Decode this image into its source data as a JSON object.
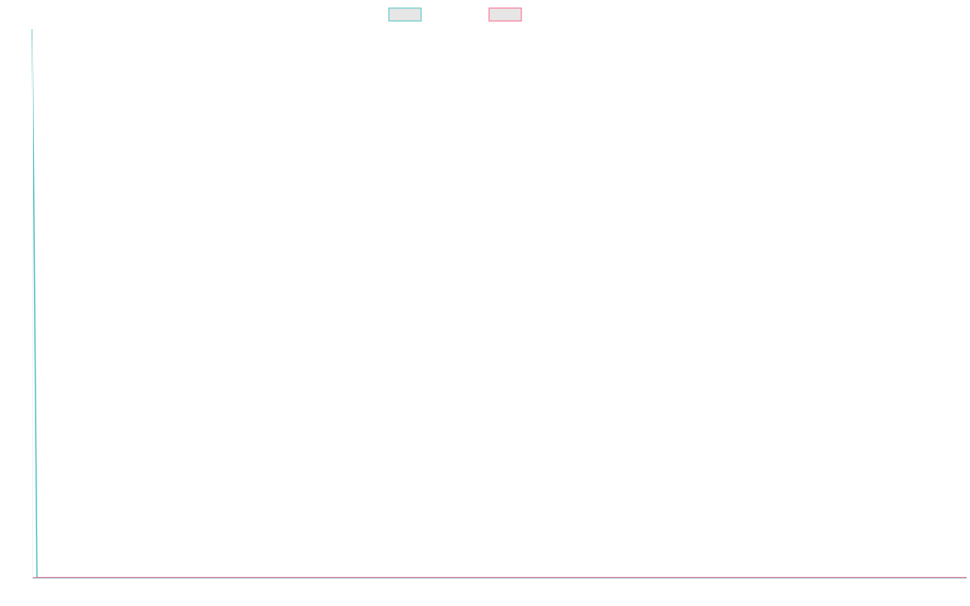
{
  "chart_data": {
    "type": "line",
    "title": "",
    "xlabel": "",
    "ylabel": "",
    "legend_position": "top-center",
    "grid": false,
    "series": [
      {
        "color": "#4bc0c0",
        "legend_swatch_fill": "#e6e6e6",
        "points": [
          [
            0,
            1.0
          ],
          [
            0.005,
            0.0
          ],
          [
            1,
            0.0
          ]
        ]
      },
      {
        "color": "#ff6384",
        "legend_swatch_fill": "#e6e6e6",
        "points": [
          [
            0,
            0.0
          ],
          [
            1,
            0.0
          ]
        ]
      }
    ],
    "xlim": [
      0,
      1
    ],
    "ylim": [
      0,
      1
    ],
    "axis_color": "#9fb6c7"
  }
}
